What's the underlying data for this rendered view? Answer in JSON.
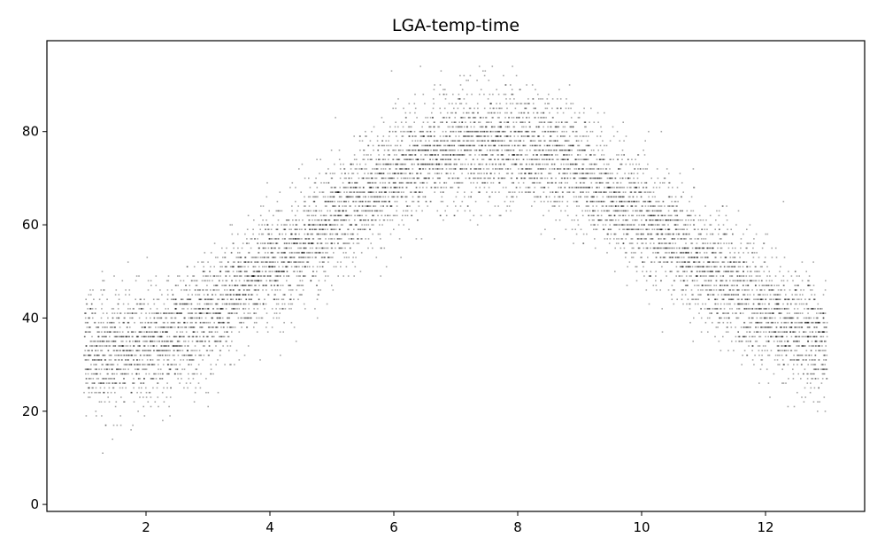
{
  "chart_data": {
    "type": "scatter",
    "title": "LGA-temp-time",
    "xlabel": "",
    "ylabel": "",
    "xlim": [
      0.4,
      13.6
    ],
    "ylim": [
      -1.5,
      99.5
    ],
    "xticks": [
      2,
      4,
      6,
      8,
      10,
      12
    ],
    "yticks": [
      0,
      20,
      40,
      60,
      80
    ],
    "grid": false,
    "legend": "none",
    "colors": {
      "marker": "#000000",
      "axes": "#000000",
      "background": "#ffffff"
    },
    "marker_opacity": 0.35,
    "series": [
      {
        "description_points_note": "temperature readings vs month-of-year (fractional)",
        "x": [
          1.0,
          1.1,
          1.2,
          1.3,
          1.4,
          1.5,
          1.6,
          1.7,
          1.8,
          1.9,
          2.0,
          2.1,
          2.2,
          2.3,
          2.4,
          2.5,
          2.6,
          2.7,
          2.8,
          2.9,
          3.0,
          3.1,
          3.2,
          3.3,
          3.4,
          3.5,
          3.6,
          3.7,
          3.8,
          3.9,
          4.0,
          4.1,
          4.2,
          4.3,
          4.4,
          4.5,
          4.6,
          4.7,
          4.8,
          4.9,
          5.0,
          5.1,
          5.2,
          5.3,
          5.4,
          5.5,
          5.6,
          5.7,
          5.8,
          5.9,
          6.0,
          6.1,
          6.2,
          6.3,
          6.4,
          6.5,
          6.6,
          6.7,
          6.8,
          6.9,
          7.0,
          7.1,
          7.2,
          7.3,
          7.4,
          7.5,
          7.6,
          7.7,
          7.8,
          7.9,
          8.0,
          8.1,
          8.2,
          8.3,
          8.4,
          8.5,
          8.6,
          8.7,
          8.8,
          8.9,
          9.0,
          9.1,
          9.2,
          9.3,
          9.4,
          9.5,
          9.6,
          9.7,
          9.8,
          9.9,
          10.0,
          10.1,
          10.2,
          10.3,
          10.4,
          10.5,
          10.6,
          10.7,
          10.8,
          10.9,
          11.0,
          11.1,
          11.2,
          11.3,
          11.4,
          11.5,
          11.6,
          11.7,
          11.8,
          11.9,
          12.0,
          12.1,
          12.2,
          12.3,
          12.4,
          12.5,
          12.6,
          12.7,
          12.8,
          12.9
        ],
        "y_center": [
          34,
          33,
          33,
          32,
          32,
          32,
          33,
          33,
          34,
          34,
          34,
          34,
          35,
          35,
          36,
          36,
          37,
          38,
          39,
          40,
          41,
          42,
          43,
          44,
          45,
          46,
          47,
          48,
          49,
          50,
          51,
          52,
          53,
          54,
          55,
          56,
          57,
          58,
          59,
          60,
          61,
          62,
          63,
          64,
          65,
          66,
          67,
          68,
          69,
          70,
          71,
          72,
          73,
          73,
          74,
          74,
          75,
          75,
          76,
          76,
          76,
          77,
          77,
          77,
          77,
          77,
          77,
          77,
          77,
          77,
          77,
          76,
          76,
          76,
          75,
          75,
          74,
          74,
          73,
          72,
          71,
          70,
          69,
          68,
          67,
          66,
          65,
          64,
          63,
          62,
          61,
          60,
          59,
          58,
          57,
          56,
          55,
          54,
          53,
          52,
          51,
          50,
          49,
          48,
          47,
          46,
          45,
          44,
          43,
          42,
          41,
          40,
          39,
          38,
          38,
          37,
          36,
          36,
          35,
          35
        ],
        "y_spread": 11,
        "y_min_observed": 3,
        "y_max_observed": 95
      }
    ]
  }
}
